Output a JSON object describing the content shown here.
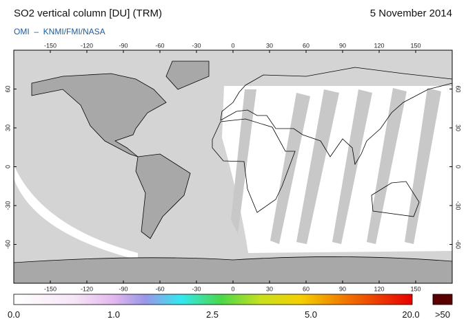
{
  "header": {
    "title": "SO2 vertical column [DU] (TRM)",
    "date": "5 November 2014",
    "credit": "OMI  –  KNMI/FMI/NASA"
  },
  "map": {
    "lon_ticks": [
      -150,
      -120,
      -90,
      -60,
      -30,
      0,
      30,
      60,
      90,
      120,
      150
    ],
    "lat_ticks": [
      -60,
      -30,
      0,
      30,
      60
    ]
  },
  "colorbar": {
    "labels": [
      "0.0",
      "1.0",
      "2.5",
      "5.0",
      "20.0",
      ">50"
    ]
  }
}
